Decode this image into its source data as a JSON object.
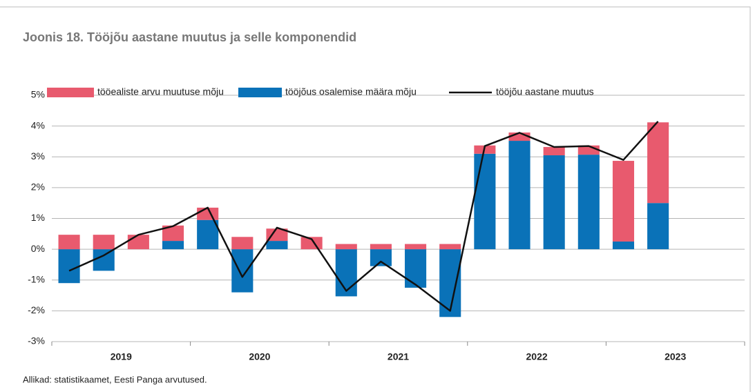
{
  "chart_data": {
    "type": "bar",
    "title": "Joonis 18. Tööjõu aastane muutus ja selle komponendid",
    "source": "Allikad: statistikaamet, Eesti Panga arvutused.",
    "stacked": true,
    "categories": [
      null,
      null,
      null,
      null,
      null,
      null,
      null,
      null,
      null,
      null,
      null,
      null,
      null,
      null,
      null,
      null,
      null,
      null,
      null,
      null
    ],
    "groups": [
      "2019",
      "2020",
      "2021",
      "2022",
      "2023"
    ],
    "series": [
      {
        "name": "tööealiste arvu muutuse mõju",
        "type": "bar",
        "color": "#e85a6e",
        "values": [
          0.47,
          0.47,
          0.47,
          0.5,
          0.4,
          0.4,
          0.4,
          0.4,
          0.17,
          0.17,
          0.17,
          0.17,
          0.27,
          0.27,
          0.27,
          0.3,
          2.62,
          2.62,
          null,
          null
        ]
      },
      {
        "name": "tööjõus osalemise määra mõju",
        "type": "bar",
        "color": "#0a72b8",
        "values": [
          -1.1,
          -0.7,
          0,
          0.27,
          0.95,
          -1.4,
          0.27,
          0,
          -1.53,
          -0.55,
          -1.25,
          -2.2,
          3.1,
          3.52,
          3.05,
          3.07,
          0.25,
          1.5,
          null,
          null
        ]
      },
      {
        "name": "tööjõu aastane muutus",
        "type": "line",
        "color": "#111111",
        "values": [
          -0.7,
          -0.2,
          0.47,
          0.75,
          1.35,
          -0.9,
          0.7,
          0.33,
          -1.35,
          -0.4,
          -1.15,
          -2.0,
          3.35,
          3.78,
          3.32,
          3.35,
          2.9,
          4.15,
          null,
          null
        ]
      }
    ],
    "ylim": [
      -3,
      5
    ],
    "yticks": [
      {
        "value": -3,
        "label": "-3%"
      },
      {
        "value": -2,
        "label": "-2%"
      },
      {
        "value": -1,
        "label": "-1%"
      },
      {
        "value": 0,
        "label": "0%"
      },
      {
        "value": 1,
        "label": "1%"
      },
      {
        "value": 2,
        "label": "2%"
      },
      {
        "value": 3,
        "label": "3%"
      },
      {
        "value": 4,
        "label": "4%"
      },
      {
        "value": 5,
        "label": "5%"
      }
    ],
    "grid": true,
    "legend": "top"
  }
}
